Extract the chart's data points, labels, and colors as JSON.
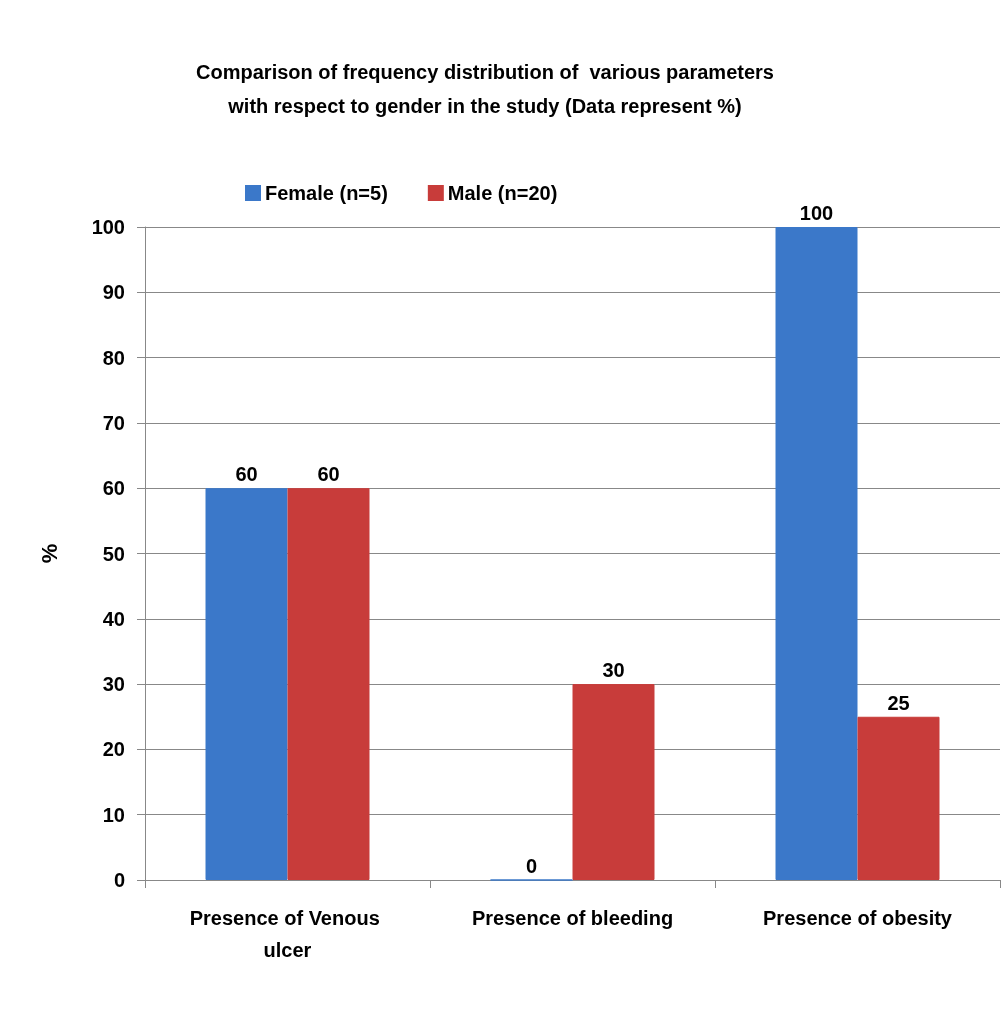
{
  "chart_data": {
    "type": "bar",
    "title": "Comparison of frequency distribution of  various parameters\nwith respect to gender in the study (Data represent %)",
    "ylabel": "%",
    "categories": [
      "Presence of Venous ulcer",
      "Presence of bleeding",
      "Presence of obesity"
    ],
    "series": [
      {
        "name": "Female (n=5)",
        "color": "#3b78c9",
        "values": [
          60,
          0,
          100
        ]
      },
      {
        "name": "Male (n=20)",
        "color": "#c83c3a",
        "values": [
          60,
          30,
          25
        ]
      }
    ],
    "ylim": [
      0,
      100
    ],
    "yticks": [
      0,
      10,
      20,
      30,
      40,
      50,
      60,
      70,
      80,
      90,
      100
    ],
    "grid": "y",
    "legend": "top",
    "data_labels": true
  }
}
